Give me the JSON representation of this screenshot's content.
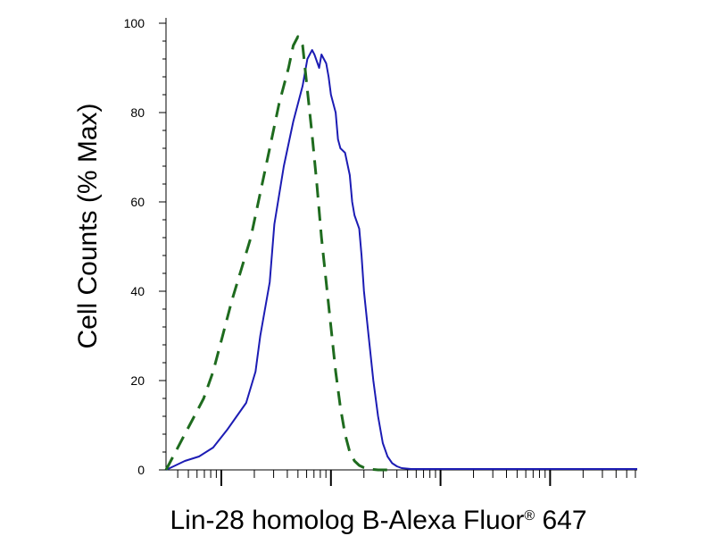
{
  "chart_data": {
    "type": "line",
    "title": "",
    "xlabel": "Lin-28 homolog B-Alexa Fluor",
    "xlabel_registered": "®",
    "xlabel_suffix": " 647",
    "ylabel": "Cell Counts (% Max)",
    "ylim": [
      0,
      100
    ],
    "yticks": [
      0,
      20,
      40,
      60,
      80,
      100
    ],
    "xscale": "log",
    "xlim": [
      0,
      1
    ],
    "x_tick_labels": "none",
    "grid": false,
    "legend": "none",
    "series": [
      {
        "style": "solid",
        "color": "#1c1cb4",
        "x": [
          0.0,
          0.02,
          0.04,
          0.07,
          0.1,
          0.13,
          0.15,
          0.17,
          0.19,
          0.2,
          0.22,
          0.23,
          0.25,
          0.27,
          0.29,
          0.3,
          0.31,
          0.315,
          0.325,
          0.33,
          0.34,
          0.345,
          0.35,
          0.36,
          0.365,
          0.37,
          0.38,
          0.39,
          0.395,
          0.4,
          0.41,
          0.415,
          0.42,
          0.43,
          0.44,
          0.45,
          0.46,
          0.47,
          0.48,
          0.49,
          0.5,
          0.51,
          0.52,
          0.53,
          0.56,
          0.6,
          0.7,
          0.8,
          0.9,
          1.0
        ],
        "values": [
          0,
          1,
          2,
          3,
          5,
          9,
          12,
          15,
          22,
          30,
          42,
          55,
          68,
          78,
          86,
          92,
          94,
          93,
          90,
          93,
          91,
          88,
          84,
          80,
          74,
          72,
          71,
          66,
          60,
          57,
          54,
          48,
          40,
          30,
          20,
          12,
          6,
          3,
          1.5,
          0.8,
          0.4,
          0.3,
          0.2,
          0.2,
          0.2,
          0.2,
          0.2,
          0.2,
          0.2,
          0.2
        ]
      },
      {
        "style": "dashed",
        "color": "#1e6b1e",
        "x": [
          0.0,
          0.02,
          0.04,
          0.06,
          0.08,
          0.1,
          0.12,
          0.14,
          0.16,
          0.18,
          0.2,
          0.22,
          0.24,
          0.25,
          0.26,
          0.27,
          0.28,
          0.29,
          0.3,
          0.31,
          0.32,
          0.33,
          0.34,
          0.35,
          0.36,
          0.37,
          0.38,
          0.39,
          0.4,
          0.41,
          0.42,
          0.43,
          0.44,
          0.45,
          0.46,
          0.48
        ],
        "values": [
          0,
          4,
          8,
          12,
          16,
          22,
          30,
          38,
          45,
          52,
          62,
          72,
          82,
          86,
          90,
          95,
          97,
          95,
          85,
          75,
          64,
          52,
          42,
          32,
          22,
          14,
          8,
          4,
          2,
          1,
          0.5,
          0.2,
          0.1,
          0,
          0,
          0
        ]
      }
    ]
  }
}
